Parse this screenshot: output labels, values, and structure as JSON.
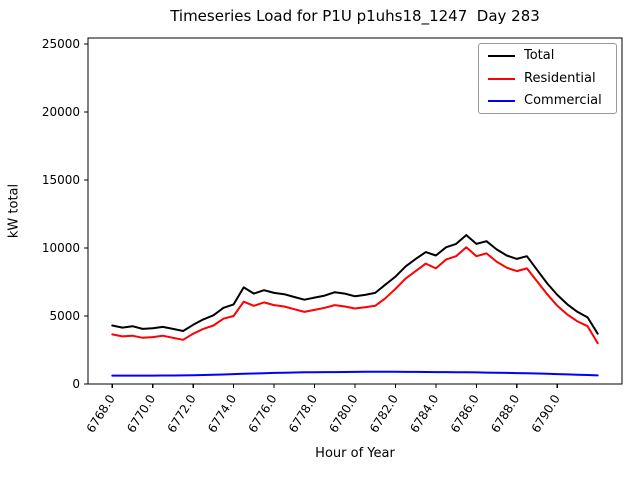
{
  "figure": {
    "background": "#ffffff"
  },
  "chart_data": {
    "type": "line",
    "title": "Timeseries Load for P1U p1uhs18_1247  Day 283",
    "xlabel": "Hour of Year",
    "ylabel": "kW total",
    "xlim": [
      6766.8,
      6793.2
    ],
    "ylim": [
      0,
      25440
    ],
    "grid": false,
    "legend_position": "upper right",
    "x_ticks": [
      6768,
      6770,
      6772,
      6774,
      6776,
      6778,
      6780,
      6782,
      6784,
      6786,
      6788,
      6790
    ],
    "x_tick_labels": [
      "6768.0",
      "6770.0",
      "6772.0",
      "6774.0",
      "6776.0",
      "6778.0",
      "6780.0",
      "6782.0",
      "6784.0",
      "6786.0",
      "6788.0",
      "6790.0"
    ],
    "y_ticks": [
      0,
      5000,
      10000,
      15000,
      20000,
      25000
    ],
    "y_tick_labels": [
      "0",
      "5000",
      "10000",
      "15000",
      "20000",
      "25000"
    ],
    "x": [
      6768.0,
      6768.5,
      6769.0,
      6769.5,
      6770.0,
      6770.5,
      6771.0,
      6771.5,
      6772.0,
      6772.5,
      6773.0,
      6773.5,
      6774.0,
      6774.5,
      6775.0,
      6775.5,
      6776.0,
      6776.5,
      6777.0,
      6777.5,
      6778.0,
      6778.5,
      6779.0,
      6779.5,
      6780.0,
      6780.5,
      6781.0,
      6781.5,
      6782.0,
      6782.5,
      6783.0,
      6783.5,
      6784.0,
      6784.5,
      6785.0,
      6785.5,
      6786.0,
      6786.5,
      6787.0,
      6787.5,
      6788.0,
      6788.5,
      6789.0,
      6789.5,
      6790.0,
      6790.5,
      6791.0,
      6791.5,
      6792.0
    ],
    "series": [
      {
        "name": "Total",
        "color": "#000000",
        "values": [
          4300,
          4150,
          4250,
          4050,
          4100,
          4200,
          4050,
          3900,
          4350,
          4750,
          5050,
          5600,
          5850,
          7100,
          6650,
          6900,
          6700,
          6600,
          6400,
          6200,
          6350,
          6500,
          6750,
          6650,
          6450,
          6550,
          6700,
          7300,
          7900,
          8650,
          9200,
          9700,
          9450,
          10050,
          10300,
          10950,
          10300,
          10500,
          9900,
          9450,
          9200,
          9400,
          8400,
          7400,
          6550,
          5850,
          5300,
          4900,
          3700
        ]
      },
      {
        "name": "Residential",
        "color": "#ff0000",
        "values": [
          3650,
          3500,
          3550,
          3400,
          3450,
          3550,
          3400,
          3250,
          3700,
          4050,
          4300,
          4800,
          5000,
          6050,
          5750,
          6000,
          5800,
          5700,
          5500,
          5300,
          5450,
          5600,
          5800,
          5700,
          5550,
          5650,
          5750,
          6300,
          7000,
          7750,
          8300,
          8850,
          8500,
          9150,
          9400,
          10050,
          9400,
          9600,
          9000,
          8550,
          8300,
          8500,
          7550,
          6600,
          5750,
          5100,
          4600,
          4250,
          3000
        ]
      },
      {
        "name": "Commercial",
        "color": "#0000ff",
        "values": [
          620,
          618,
          615,
          615,
          618,
          622,
          628,
          636,
          648,
          662,
          680,
          700,
          725,
          750,
          772,
          795,
          815,
          832,
          848,
          858,
          865,
          872,
          878,
          884,
          890,
          895,
          900,
          898,
          895,
          892,
          888,
          884,
          878,
          872,
          865,
          858,
          850,
          840,
          830,
          818,
          805,
          790,
          772,
          752,
          730,
          708,
          685,
          660,
          630
        ]
      }
    ]
  }
}
